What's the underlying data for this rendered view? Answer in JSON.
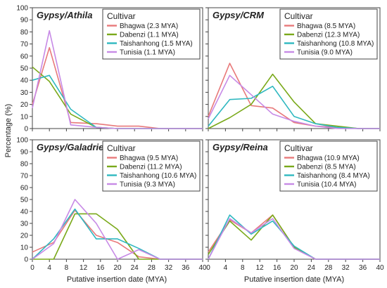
{
  "chart_data": [
    {
      "type": "line",
      "title": "Gypsy/Athila",
      "legend_title": "Cultivar",
      "legend_position": "top-right",
      "x": [
        0,
        4,
        9,
        15,
        20,
        25,
        30,
        35,
        40
      ],
      "xlim": [
        0,
        40
      ],
      "ylim": [
        0,
        100
      ],
      "series": [
        {
          "name": "Bhagwa (2.3 MYA)",
          "color": "#e8797a",
          "values": [
            20,
            67,
            5,
            4,
            2,
            2,
            0,
            0,
            0
          ]
        },
        {
          "name": "Dabenzi (1.1 MYA)",
          "color": "#7aa91a",
          "values": [
            51,
            39,
            12,
            1,
            0,
            0,
            0,
            0,
            0
          ]
        },
        {
          "name": "Taishanhong (1.5 MYA)",
          "color": "#2fb8c0",
          "values": [
            40,
            44,
            16,
            1,
            0,
            0,
            0,
            0,
            0
          ]
        },
        {
          "name": "Tunisia (1.1 MYA)",
          "color": "#c78ae6",
          "values": [
            17,
            81,
            3,
            1,
            0,
            0,
            0,
            0,
            0
          ]
        }
      ]
    },
    {
      "type": "line",
      "title": "Gypsy/CRM",
      "legend_title": "Cultivar",
      "legend_position": "top-right",
      "x": [
        0,
        5,
        10,
        15,
        20,
        25,
        30,
        35,
        40
      ],
      "xlim": [
        0,
        40
      ],
      "ylim": [
        0,
        100
      ],
      "series": [
        {
          "name": "Bhagwa (8.5 MYA)",
          "color": "#e8797a",
          "values": [
            10,
            54,
            19,
            17,
            5,
            2,
            1,
            0,
            0
          ]
        },
        {
          "name": "Dabenzi (12.3 MYA)",
          "color": "#7aa91a",
          "values": [
            0,
            9,
            20,
            45,
            22,
            4,
            2,
            0,
            0
          ]
        },
        {
          "name": "Taishanhong (10.8 MYA)",
          "color": "#2fb8c0",
          "values": [
            2,
            24,
            25,
            35,
            10,
            4,
            1,
            0,
            0
          ]
        },
        {
          "name": "Tunisia (9.0 MYA)",
          "color": "#c78ae6",
          "values": [
            8,
            44,
            28,
            12,
            6,
            2,
            0,
            0,
            0
          ]
        }
      ]
    },
    {
      "type": "line",
      "title": "Gypsy/Galadriel",
      "legend_title": "Cultivar",
      "legend_position": "top-right",
      "x": [
        0,
        5,
        10,
        15,
        20,
        25,
        30,
        35,
        40
      ],
      "xlim": [
        0,
        40
      ],
      "ylim": [
        0,
        100
      ],
      "series": [
        {
          "name": "Bhagwa (9.5 MYA)",
          "color": "#e8797a",
          "values": [
            6,
            14,
            41,
            20,
            14,
            2,
            0,
            0,
            0
          ]
        },
        {
          "name": "Dabenzi (11.2 MYA)",
          "color": "#7aa91a",
          "values": [
            0,
            0,
            38,
            38,
            25,
            0,
            0,
            0,
            0
          ]
        },
        {
          "name": "Taishanhong (10.6 MYA)",
          "color": "#2fb8c0",
          "values": [
            0,
            17,
            42,
            17,
            17,
            9,
            0,
            0,
            0
          ]
        },
        {
          "name": "Tunisia (9.3 MYA)",
          "color": "#c78ae6",
          "values": [
            0,
            13,
            50,
            30,
            0,
            8,
            0,
            0,
            0
          ]
        }
      ]
    },
    {
      "type": "line",
      "title": "Gypsy/Reina",
      "legend_title": "Cultivar",
      "legend_position": "top-right",
      "x": [
        0,
        5,
        10,
        15,
        20,
        25,
        30,
        35,
        40
      ],
      "xlim": [
        0,
        40
      ],
      "ylim": [
        0,
        100
      ],
      "series": [
        {
          "name": "Bhagwa (10.9 MYA)",
          "color": "#e8797a",
          "values": [
            6,
            33,
            22,
            37,
            10,
            0,
            0,
            0,
            0
          ]
        },
        {
          "name": "Dabenzi (8.5 MYA)",
          "color": "#7aa91a",
          "values": [
            4,
            32,
            16,
            37,
            10,
            0,
            0,
            0,
            0
          ]
        },
        {
          "name": "Taishanhong (8.4 MYA)",
          "color": "#2fb8c0",
          "values": [
            0,
            37,
            21,
            32,
            11,
            0,
            0,
            0,
            0
          ]
        },
        {
          "name": "Tunisia (10.4 MYA)",
          "color": "#c78ae6",
          "values": [
            0,
            34,
            22,
            34,
            9,
            0,
            0,
            0,
            0
          ]
        }
      ]
    }
  ],
  "ylabel": "Percentage (%)",
  "xlabel": "Putative insertion date (MYA)",
  "y_ticks": [
    0,
    10,
    20,
    30,
    40,
    50,
    60,
    70,
    80,
    90,
    100
  ],
  "x_ticks": [
    0,
    4,
    8,
    12,
    16,
    20,
    24,
    28,
    32,
    36,
    40
  ]
}
